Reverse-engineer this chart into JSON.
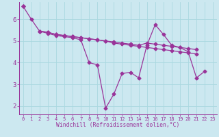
{
  "x": [
    0,
    1,
    2,
    3,
    4,
    5,
    6,
    7,
    8,
    9,
    10,
    11,
    12,
    13,
    14,
    15,
    16,
    17,
    18,
    19,
    20,
    21,
    22,
    23
  ],
  "line1": [
    6.6,
    6.0,
    5.45,
    5.35,
    5.25,
    5.2,
    5.15,
    5.05,
    4.0,
    3.9,
    1.9,
    2.55,
    3.5,
    3.55,
    3.3,
    4.8,
    5.75,
    5.3,
    4.8,
    4.7,
    4.5,
    3.3,
    3.6,
    null
  ],
  "line2": [
    6.6,
    null,
    5.45,
    5.4,
    5.3,
    5.25,
    5.2,
    5.15,
    5.1,
    5.05,
    5.0,
    4.95,
    4.9,
    4.85,
    4.8,
    4.9,
    4.85,
    4.8,
    4.75,
    4.7,
    4.65,
    4.6,
    null,
    null
  ],
  "line3": [
    6.6,
    null,
    5.45,
    5.4,
    5.3,
    5.25,
    5.2,
    5.15,
    5.1,
    5.05,
    5.0,
    4.9,
    4.85,
    4.8,
    4.75,
    4.7,
    4.65,
    4.6,
    4.55,
    4.5,
    4.45,
    4.4,
    null,
    null
  ],
  "line_color": "#993399",
  "bg_color": "#cce8f0",
  "grid_color": "#aad8e0",
  "xlabel": "Windchill (Refroidissement éolien,°C)",
  "xlim": [
    -0.5,
    23.5
  ],
  "ylim": [
    1.6,
    6.8
  ],
  "yticks": [
    2,
    3,
    4,
    5,
    6
  ],
  "xticks": [
    0,
    1,
    2,
    3,
    4,
    5,
    6,
    7,
    8,
    9,
    10,
    11,
    12,
    13,
    14,
    15,
    16,
    17,
    18,
    19,
    20,
    21,
    22,
    23
  ]
}
